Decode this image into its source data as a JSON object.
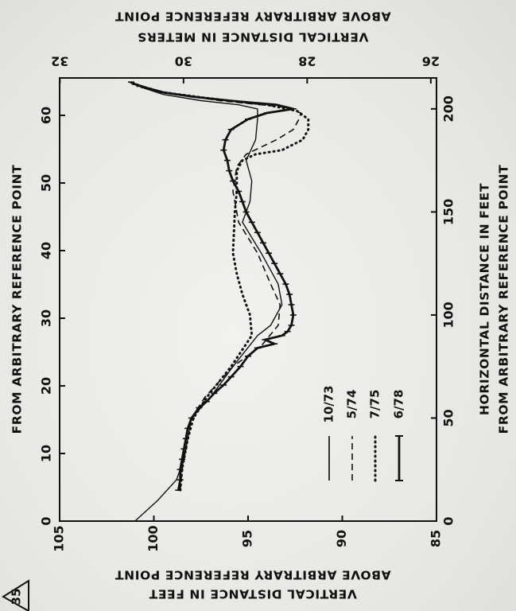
{
  "figure_number": "35",
  "chart_data": {
    "type": "line",
    "title": "",
    "x_axis": {
      "primary_label_lines": [
        "HORIZONTAL DISTANCE IN FEET",
        "FROM ARBITRARY REFERENCE POINT"
      ],
      "primary_unit": "feet",
      "range_feet": [
        0,
        215
      ],
      "primary_ticks": [
        "0",
        "50",
        "100",
        "150",
        "200"
      ],
      "secondary_label": "FROM ARBITRARY REFERENCE POINT",
      "secondary_unit": "meters",
      "secondary_ticks": [
        "0",
        "10",
        "20",
        "30",
        "40",
        "50",
        "60"
      ]
    },
    "y_axis": {
      "primary_label_lines": [
        "VERTICAL DISTANCE IN FEET",
        "ABOVE ARBITRARY REFERENCE POINT"
      ],
      "primary_unit": "feet",
      "range_feet": [
        85,
        105
      ],
      "primary_ticks": [
        "85",
        "90",
        "95",
        "100",
        "105"
      ],
      "secondary_label_lines": [
        "VERTICAL DISTANCE IN METERS",
        "ABOVE ARBITRARY REFERENCE POINT"
      ],
      "secondary_unit": "meters",
      "secondary_ticks": [
        "26",
        "28",
        "30",
        "32"
      ]
    },
    "series": [
      {
        "name": "10/73",
        "style": "solid",
        "x": [
          0,
          10,
          20,
          30,
          40,
          50,
          55,
          60,
          75,
          90,
          95,
          105,
          115,
          130,
          145,
          155,
          165,
          175,
          185,
          195,
          200,
          202,
          204,
          207,
          210,
          212,
          213
        ],
        "y": [
          101,
          99.8,
          98.8,
          98.4,
          98.2,
          98.0,
          97.5,
          97.0,
          95.8,
          94.5,
          93.8,
          93.2,
          93.4,
          94.3,
          95.3,
          94.9,
          94.8,
          95.1,
          94.6,
          94.5,
          94.5,
          95.5,
          97.5,
          99.5,
          100.5,
          101.0,
          101.2
        ]
      },
      {
        "name": "5/74",
        "style": "dashed",
        "x": [
          15,
          25,
          40,
          50,
          60,
          75,
          85,
          95,
          105,
          115,
          130,
          145,
          160,
          172,
          178,
          185,
          190,
          195,
          198,
          201,
          204,
          207,
          210,
          213
        ],
        "y": [
          98.6,
          98.5,
          98.3,
          98.0,
          97.3,
          95.8,
          94.3,
          93.4,
          93.3,
          93.8,
          94.5,
          95.5,
          95.8,
          95.6,
          95.1,
          93.5,
          92.6,
          92.3,
          92.2,
          93.2,
          96.5,
          98.8,
          100.5,
          101.3
        ]
      },
      {
        "name": "7/75",
        "style": "dotted",
        "x": [
          15,
          25,
          40,
          50,
          60,
          75,
          90,
          100,
          110,
          120,
          130,
          150,
          160,
          170,
          175,
          178,
          180,
          185,
          190,
          195,
          199,
          202,
          205,
          208,
          211,
          213
        ],
        "y": [
          98.6,
          98.5,
          98.2,
          97.9,
          97.2,
          95.9,
          94.8,
          94.9,
          95.3,
          95.6,
          95.8,
          95.7,
          95.6,
          95.6,
          95.3,
          94.6,
          93.2,
          92.1,
          91.8,
          91.8,
          92.4,
          94.0,
          97.0,
          99.5,
          100.8,
          101.3
        ]
      },
      {
        "name": "6/78",
        "style": "solid-marked",
        "x": [
          15,
          20,
          25,
          30,
          35,
          40,
          45,
          50,
          55,
          58,
          62,
          66,
          70,
          75,
          80,
          84,
          86,
          88,
          90,
          92,
          95,
          100,
          105,
          110,
          115,
          120,
          125,
          130,
          135,
          140,
          145,
          150,
          155,
          160,
          165,
          170,
          175,
          180,
          185,
          190,
          195,
          198,
          200,
          202,
          204,
          206,
          208,
          210,
          212,
          213
        ],
        "y": [
          98.7,
          98.6,
          98.6,
          98.5,
          98.4,
          98.3,
          98.2,
          98.0,
          97.6,
          97.2,
          96.8,
          96.3,
          95.9,
          95.4,
          95.0,
          94.5,
          93.6,
          94.1,
          93.2,
          92.9,
          92.7,
          92.6,
          92.7,
          92.8,
          93.0,
          93.3,
          93.6,
          93.9,
          94.2,
          94.5,
          94.8,
          95.1,
          95.3,
          95.5,
          95.8,
          96.0,
          96.1,
          96.3,
          96.2,
          95.9,
          95.0,
          94.0,
          92.6,
          93.5,
          96.0,
          98.0,
          99.5,
          100.3,
          101.0,
          101.2
        ]
      }
    ],
    "grid": false,
    "legend_position": "lower-right"
  }
}
